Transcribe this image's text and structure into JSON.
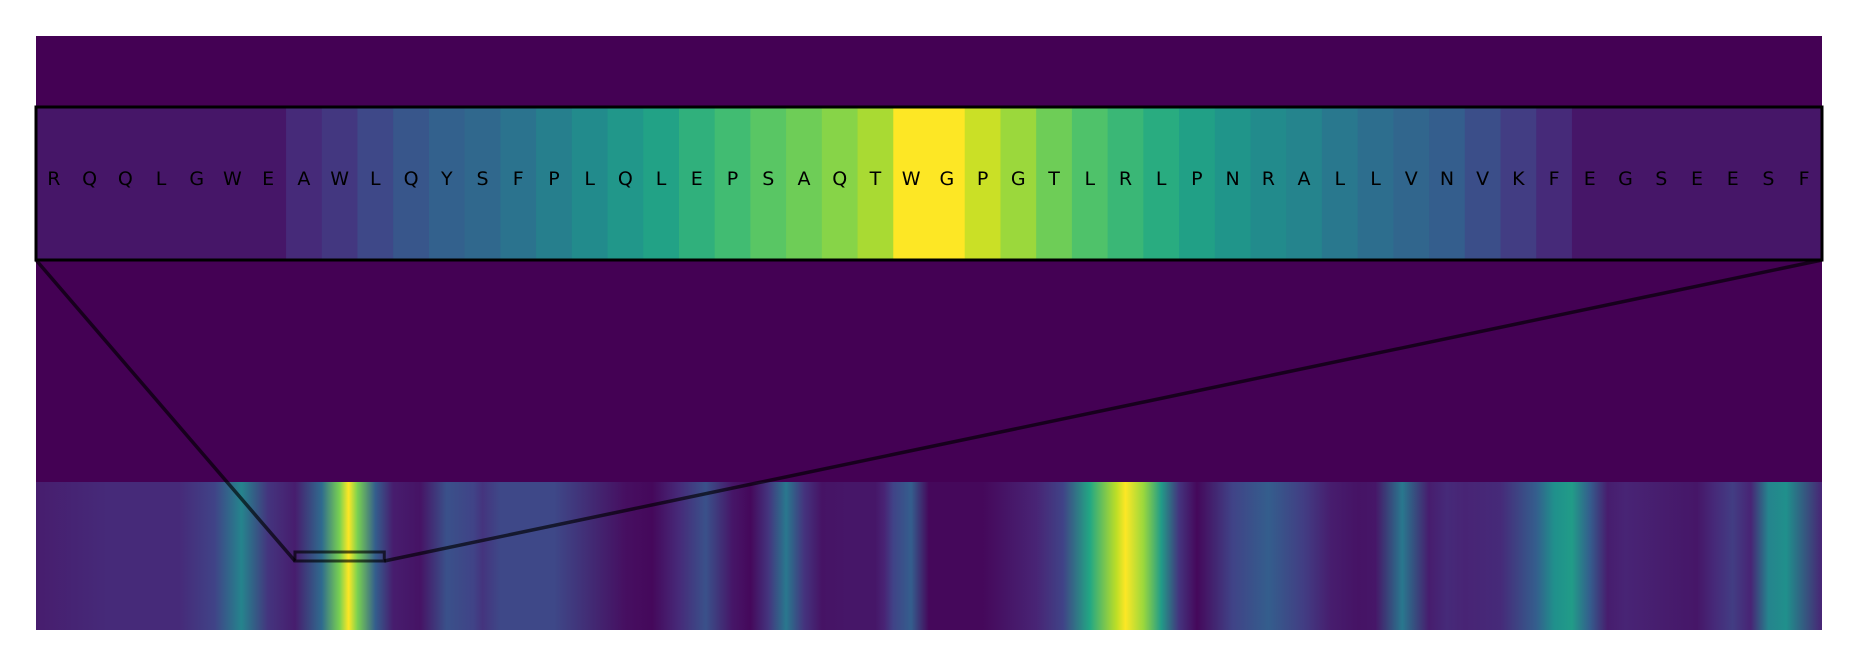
{
  "chart_data": {
    "type": "heatmap",
    "colormap": "viridis",
    "grid": false,
    "legend": "none",
    "background_color": "#440154",
    "frame_color": "#000000",
    "zoom_panel": {
      "residues": [
        "R",
        "Q",
        "Q",
        "L",
        "G",
        "W",
        "E",
        "A",
        "W",
        "L",
        "Q",
        "Y",
        "S",
        "F",
        "P",
        "L",
        "Q",
        "L",
        "E",
        "P",
        "S",
        "A",
        "Q",
        "T",
        "W",
        "G",
        "P",
        "G",
        "T",
        "L",
        "R",
        "L",
        "P",
        "N",
        "R",
        "A",
        "L",
        "L",
        "V",
        "N",
        "V",
        "K",
        "F",
        "E",
        "G",
        "S",
        "E",
        "E",
        "S",
        "F"
      ],
      "values": [
        0.06,
        0.06,
        0.06,
        0.06,
        0.06,
        0.06,
        0.06,
        0.12,
        0.16,
        0.22,
        0.27,
        0.31,
        0.34,
        0.38,
        0.43,
        0.48,
        0.53,
        0.58,
        0.64,
        0.69,
        0.74,
        0.78,
        0.82,
        0.87,
        1.0,
        1.0,
        0.92,
        0.85,
        0.78,
        0.72,
        0.67,
        0.62,
        0.57,
        0.52,
        0.48,
        0.45,
        0.4,
        0.36,
        0.33,
        0.3,
        0.24,
        0.18,
        0.12,
        0.06,
        0.06,
        0.06,
        0.06,
        0.06,
        0.06,
        0.06
      ]
    },
    "full_track": {
      "x": [
        0,
        0.04,
        0.08,
        0.1,
        0.115,
        0.13,
        0.145,
        0.16,
        0.17,
        0.175,
        0.18,
        0.19,
        0.2,
        0.215,
        0.23,
        0.245,
        0.25,
        0.26,
        0.29,
        0.33,
        0.345,
        0.36,
        0.375,
        0.39,
        0.4,
        0.41,
        0.42,
        0.43,
        0.44,
        0.455,
        0.47,
        0.475,
        0.48,
        0.49,
        0.5,
        0.53,
        0.56,
        0.575,
        0.59,
        0.605,
        0.61,
        0.62,
        0.63,
        0.64,
        0.65,
        0.67,
        0.69,
        0.71,
        0.725,
        0.74,
        0.75,
        0.765,
        0.78,
        0.79,
        0.8,
        0.82,
        0.84,
        0.85,
        0.86,
        0.87,
        0.88,
        0.89,
        0.91,
        0.93,
        0.94,
        0.95,
        0.96,
        0.97,
        0.98,
        1.0
      ],
      "values": [
        0.08,
        0.12,
        0.12,
        0.2,
        0.45,
        0.15,
        0.08,
        0.35,
        0.8,
        1.0,
        0.8,
        0.3,
        0.08,
        0.05,
        0.25,
        0.2,
        0.15,
        0.22,
        0.22,
        0.04,
        0.02,
        0.12,
        0.25,
        0.06,
        0.02,
        0.15,
        0.4,
        0.15,
        0.05,
        0.06,
        0.06,
        0.1,
        0.2,
        0.3,
        0.02,
        0.02,
        0.1,
        0.2,
        0.6,
        0.9,
        1.0,
        0.85,
        0.55,
        0.15,
        0.02,
        0.2,
        0.3,
        0.18,
        0.08,
        0.05,
        0.06,
        0.4,
        0.08,
        0.12,
        0.1,
        0.12,
        0.3,
        0.5,
        0.55,
        0.3,
        0.08,
        0.1,
        0.08,
        0.06,
        0.12,
        0.18,
        0.1,
        0.45,
        0.5,
        0.1
      ],
      "zoom_window": [
        0.145,
        0.195
      ]
    }
  }
}
